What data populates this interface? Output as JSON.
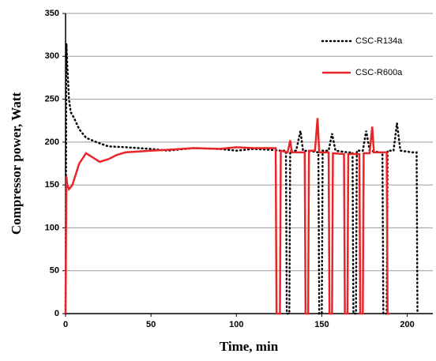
{
  "chart_data": {
    "type": "line",
    "xlabel": "Time, min",
    "ylabel": "Compressor power, Watt",
    "xlim": [
      0,
      215
    ],
    "xticks": [
      0,
      50,
      100,
      150,
      200
    ],
    "ylim": [
      0,
      350
    ],
    "yticks": [
      0,
      50,
      100,
      150,
      200,
      250,
      300,
      350
    ],
    "grid": true,
    "legend": "upper right",
    "series": [
      {
        "name": "CSC-R134a",
        "color": "#000000",
        "style": "dotted",
        "x": [
          0,
          0.5,
          1,
          2,
          3,
          5,
          8,
          12,
          18,
          25,
          35,
          50,
          60,
          75,
          90,
          100,
          110,
          120,
          126,
          129,
          129.5,
          131,
          131.5,
          135,
          137.5,
          139,
          145,
          148,
          148.5,
          150,
          150.5,
          154,
          156,
          158,
          165,
          168,
          168.5,
          170,
          170.5,
          174,
          176,
          178,
          184,
          185.5,
          186,
          188,
          188.5,
          192,
          194,
          196,
          203,
          205.5,
          206
        ],
        "values": [
          0,
          315,
          290,
          250,
          235,
          228,
          215,
          205,
          200,
          195,
          194,
          192,
          190,
          193,
          192,
          190,
          192,
          191,
          190,
          190,
          0,
          0,
          190,
          190,
          213,
          190,
          189,
          188,
          0,
          0,
          190,
          190,
          210,
          190,
          188,
          188,
          0,
          0,
          190,
          190,
          213,
          190,
          188,
          188,
          0,
          0,
          190,
          190,
          222,
          190,
          188,
          188,
          0
        ]
      },
      {
        "name": "CSC-R600a",
        "color": "#e8262a",
        "style": "solid",
        "x": [
          0,
          0.5,
          1,
          2,
          4,
          8,
          12,
          16,
          20,
          25,
          30,
          35,
          50,
          60,
          75,
          90,
          100,
          110,
          123,
          123.5,
          125.5,
          126,
          130,
          131.5,
          132.5,
          140,
          140.5,
          142,
          142.5,
          146,
          147.5,
          148.5,
          154,
          154.5,
          156,
          156.5,
          163,
          163.5,
          165,
          165.5,
          172,
          172.5,
          174,
          174.5,
          178,
          179.5,
          180.5,
          188,
          188.5,
          190
        ],
        "values": [
          0,
          160,
          150,
          145,
          150,
          175,
          187,
          182,
          177,
          180,
          185,
          188,
          190,
          191,
          193,
          192,
          194,
          193,
          193,
          0,
          0,
          190,
          188,
          202,
          188,
          188,
          0,
          0,
          190,
          190,
          228,
          188,
          188,
          0,
          0,
          187,
          186,
          0,
          0,
          186,
          186,
          0,
          0,
          187,
          187,
          218,
          188,
          188,
          0,
          0
        ]
      }
    ]
  }
}
